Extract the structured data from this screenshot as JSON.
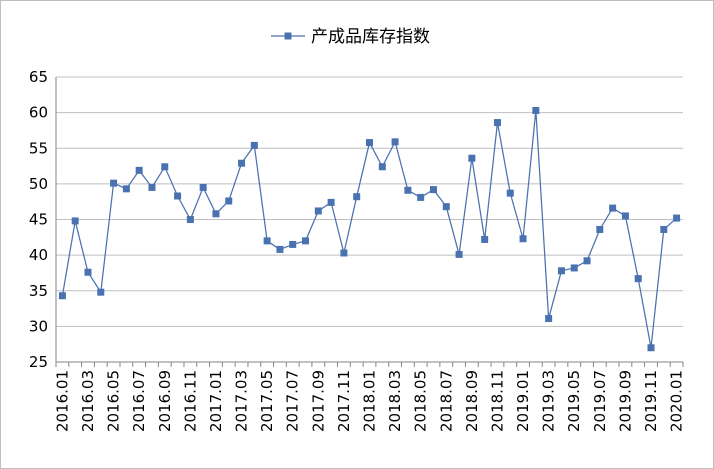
{
  "chart_data": {
    "type": "line",
    "title": "",
    "xlabel": "",
    "ylabel": "",
    "ylim": [
      25,
      65
    ],
    "yticks": [
      25,
      30,
      35,
      40,
      45,
      50,
      55,
      60,
      65
    ],
    "grid": "horizontal",
    "legend_position": "top-center",
    "line_color": "#4a72b0",
    "categories": [
      "2016.01",
      "2016.02",
      "2016.03",
      "2016.04",
      "2016.05",
      "2016.06",
      "2016.07",
      "2016.08",
      "2016.09",
      "2016.10",
      "2016.11",
      "2016.12",
      "2017.01",
      "2017.02",
      "2017.03",
      "2017.04",
      "2017.05",
      "2017.06",
      "2017.07",
      "2017.08",
      "2017.09",
      "2017.10",
      "2017.11",
      "2017.12",
      "2018.01",
      "2018.02",
      "2018.03",
      "2018.04",
      "2018.05",
      "2018.06",
      "2018.07",
      "2018.08",
      "2018.09",
      "2018.10",
      "2018.11",
      "2018.12",
      "2019.01",
      "2019.02",
      "2019.03",
      "2019.04",
      "2019.05",
      "2019.06",
      "2019.07",
      "2019.08",
      "2019.09",
      "2019.10",
      "2019.11",
      "2019.12",
      "2020.01"
    ],
    "tick_labels": [
      "2016.01",
      "2016.03",
      "2016.05",
      "2016.07",
      "2016.09",
      "2016.11",
      "2017.01",
      "2017.03",
      "2017.05",
      "2017.07",
      "2017.09",
      "2017.11",
      "2018.01",
      "2018.03",
      "2018.05",
      "2018.07",
      "2018.09",
      "2018.11",
      "2019.01",
      "2019.03",
      "2019.05",
      "2019.07",
      "2019.09",
      "2019.11",
      "2020.01"
    ],
    "series": [
      {
        "name": "产成品库存指数",
        "values": [
          34.3,
          44.8,
          37.6,
          34.8,
          50.1,
          49.3,
          51.9,
          49.5,
          52.4,
          48.3,
          45.0,
          49.5,
          45.8,
          47.6,
          52.9,
          55.4,
          42.0,
          40.8,
          41.5,
          42.0,
          46.2,
          47.4,
          40.3,
          48.2,
          55.8,
          52.4,
          55.9,
          49.1,
          48.1,
          49.2,
          46.8,
          40.1,
          53.6,
          42.2,
          58.6,
          48.7,
          42.3,
          60.3,
          31.1,
          37.8,
          38.2,
          39.2,
          43.6,
          46.6,
          45.5,
          36.7,
          27.0,
          43.6,
          45.2
        ]
      }
    ]
  }
}
